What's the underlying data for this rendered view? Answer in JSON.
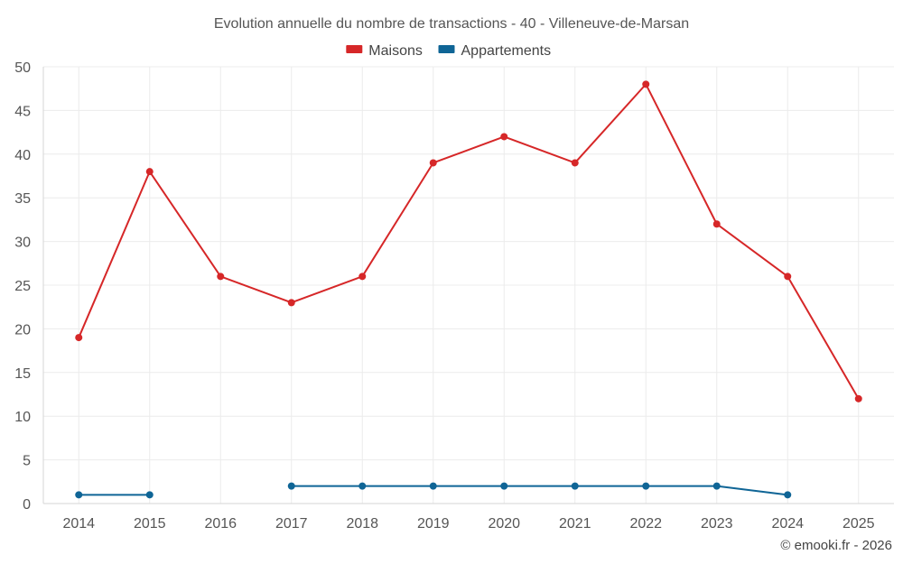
{
  "chart_data": {
    "type": "line",
    "title": "Evolution annuelle du nombre de transactions - 40 - Villeneuve-de-Marsan",
    "categories": [
      "2014",
      "2015",
      "2016",
      "2017",
      "2018",
      "2019",
      "2020",
      "2021",
      "2022",
      "2023",
      "2024",
      "2025"
    ],
    "ylim": [
      0,
      50
    ],
    "yticks": [
      0,
      5,
      10,
      15,
      20,
      25,
      30,
      35,
      40,
      45,
      50
    ],
    "grid": true,
    "legend_position": "top-center",
    "series": [
      {
        "name": "Maisons",
        "color": "#d62728",
        "values": [
          19,
          38,
          26,
          23,
          26,
          39,
          42,
          39,
          48,
          32,
          26,
          12
        ]
      },
      {
        "name": "Appartements",
        "color": "#0f6596",
        "values": [
          1,
          1,
          null,
          2,
          2,
          2,
          2,
          2,
          2,
          2,
          1,
          null
        ]
      }
    ],
    "credit": "© emooki.fr - 2026"
  }
}
